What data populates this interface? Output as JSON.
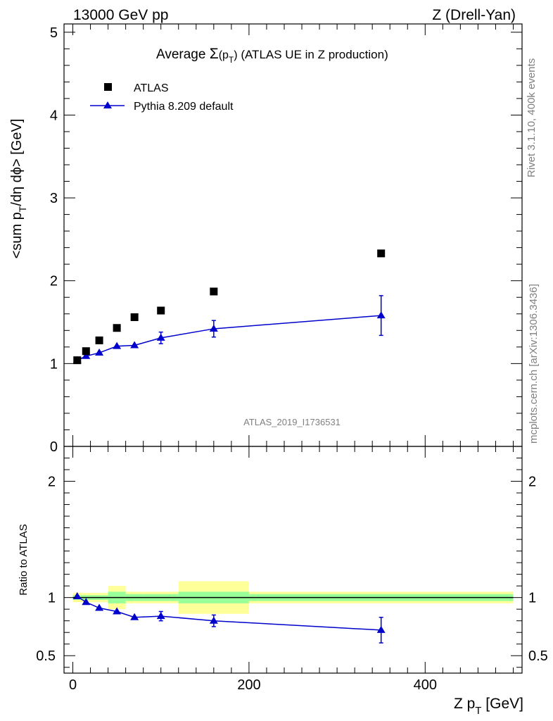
{
  "header": {
    "left": "13000 GeV pp",
    "right": "Z (Drell-Yan)"
  },
  "title": {
    "prefix": "Average ",
    "sigma": "Σ",
    "paren_open": "(p",
    "sub": "T",
    "paren_close": ")",
    "suffix": " (ATLAS UE in Z production)"
  },
  "side_labels": {
    "rivet": "Rivet 3.1.10,  400k events",
    "mcplots": "mcplots.cern.ch [arXiv:1306.3436]"
  },
  "analysis_label": "ATLAS_2019_I1736531",
  "legend": {
    "data_label": "ATLAS",
    "mc_label": "Pythia 8.209 default"
  },
  "axes": {
    "ylabel_main": "<sum p_T/dη dϕ> [GeV]",
    "ylabel_ratio": "Ratio to ATLAS",
    "xlabel_main": "Z p",
    "xlabel_sub": "T",
    "xlabel_unit": " [GeV]"
  },
  "colors": {
    "data": "#000000",
    "mc": "#0000cc",
    "band_inner": "#99ff99",
    "band_outer": "#ffff99"
  },
  "chart_data": [
    {
      "type": "scatter",
      "panel": "main",
      "xlim": [
        -10,
        510
      ],
      "ylim": [
        0,
        5.1
      ],
      "yticks": [
        0,
        1,
        2,
        3,
        4,
        5
      ],
      "ytick_labels": [
        "0",
        "1",
        "2",
        "3",
        "4",
        "5"
      ],
      "series": [
        {
          "name": "ATLAS",
          "marker": "square",
          "x": [
            5,
            15,
            30,
            50,
            70,
            100,
            160,
            350
          ],
          "y": [
            1.04,
            1.15,
            1.28,
            1.43,
            1.56,
            1.64,
            1.87,
            2.33
          ]
        },
        {
          "name": "Pythia 8.209 default",
          "marker": "triangle",
          "x": [
            5,
            15,
            30,
            50,
            70,
            100,
            160,
            350
          ],
          "y": [
            1.04,
            1.09,
            1.13,
            1.21,
            1.22,
            1.31,
            1.42,
            1.58
          ],
          "yerr": [
            0.02,
            0.02,
            0.02,
            0.03,
            0.05,
            0.07,
            0.1,
            0.24
          ]
        }
      ]
    },
    {
      "type": "scatter",
      "panel": "ratio",
      "xlim": [
        -10,
        510
      ],
      "ylim": [
        0.35,
        2.3
      ],
      "yticks": [
        0.5,
        1,
        2
      ],
      "ytick_labels": [
        "0.5",
        "1",
        "2"
      ],
      "xticks": [
        0,
        200,
        400
      ],
      "xtick_labels": [
        "0",
        "200",
        "400"
      ],
      "bands": [
        {
          "x0": 0,
          "x1": 10,
          "inner": 0.02,
          "outer": 0.04
        },
        {
          "x0": 10,
          "x1": 20,
          "inner": 0.02,
          "outer": 0.04
        },
        {
          "x0": 20,
          "x1": 40,
          "inner": 0.02,
          "outer": 0.04
        },
        {
          "x0": 40,
          "x1": 60,
          "inner": 0.05,
          "outer": 0.1
        },
        {
          "x0": 60,
          "x1": 80,
          "inner": 0.03,
          "outer": 0.05
        },
        {
          "x0": 80,
          "x1": 120,
          "inner": 0.03,
          "outer": 0.05
        },
        {
          "x0": 120,
          "x1": 200,
          "inner": 0.05,
          "outer": 0.14
        },
        {
          "x0": 200,
          "x1": 500,
          "inner": 0.03,
          "outer": 0.05
        }
      ],
      "series": [
        {
          "name": "Pythia 8.209 default",
          "marker": "triangle",
          "x": [
            5,
            15,
            30,
            50,
            70,
            100,
            160,
            350
          ],
          "y": [
            1.01,
            0.96,
            0.91,
            0.88,
            0.83,
            0.84,
            0.8,
            0.72
          ],
          "yerr": [
            0.02,
            0.02,
            0.02,
            0.02,
            0.03,
            0.04,
            0.05,
            0.11
          ]
        }
      ]
    }
  ]
}
